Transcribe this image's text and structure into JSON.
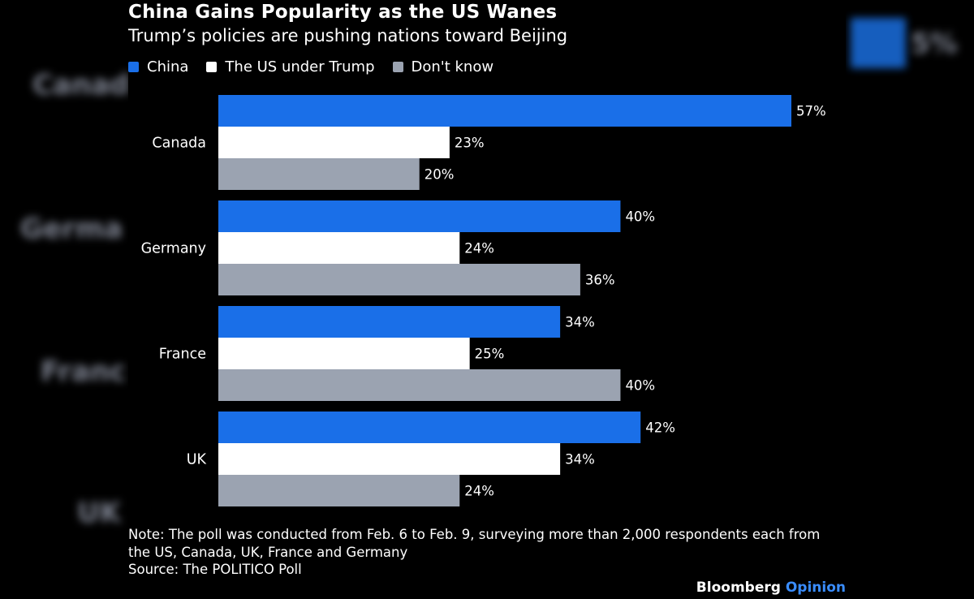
{
  "chart_data": {
    "type": "bar",
    "orientation": "horizontal",
    "title": "China Gains Popularity as the US Wanes",
    "subtitle": "Trump’s policies are pushing nations toward Beijing",
    "categories": [
      "Canada",
      "Germany",
      "France",
      "UK"
    ],
    "series": [
      {
        "name": "China",
        "color": "#1a6fe8",
        "values": [
          57,
          40,
          34,
          42
        ]
      },
      {
        "name": "The US under Trump",
        "color": "#ffffff",
        "values": [
          23,
          24,
          25,
          34
        ]
      },
      {
        "name": "Don't know",
        "color": "#9ba3b1",
        "values": [
          20,
          36,
          40,
          24
        ]
      }
    ],
    "value_suffix": "%",
    "xlim": [
      0,
      57
    ],
    "legend": "top-left"
  },
  "footer": {
    "note": "Note: The poll was conducted from Feb. 6 to Feb. 9, surveying more than 2,000 respondents each from the US, Canada, UK, France and Germany",
    "source": "Source: The POLITICO Poll",
    "brand_main": "Bloomberg",
    "brand_sub": "Opinion"
  }
}
